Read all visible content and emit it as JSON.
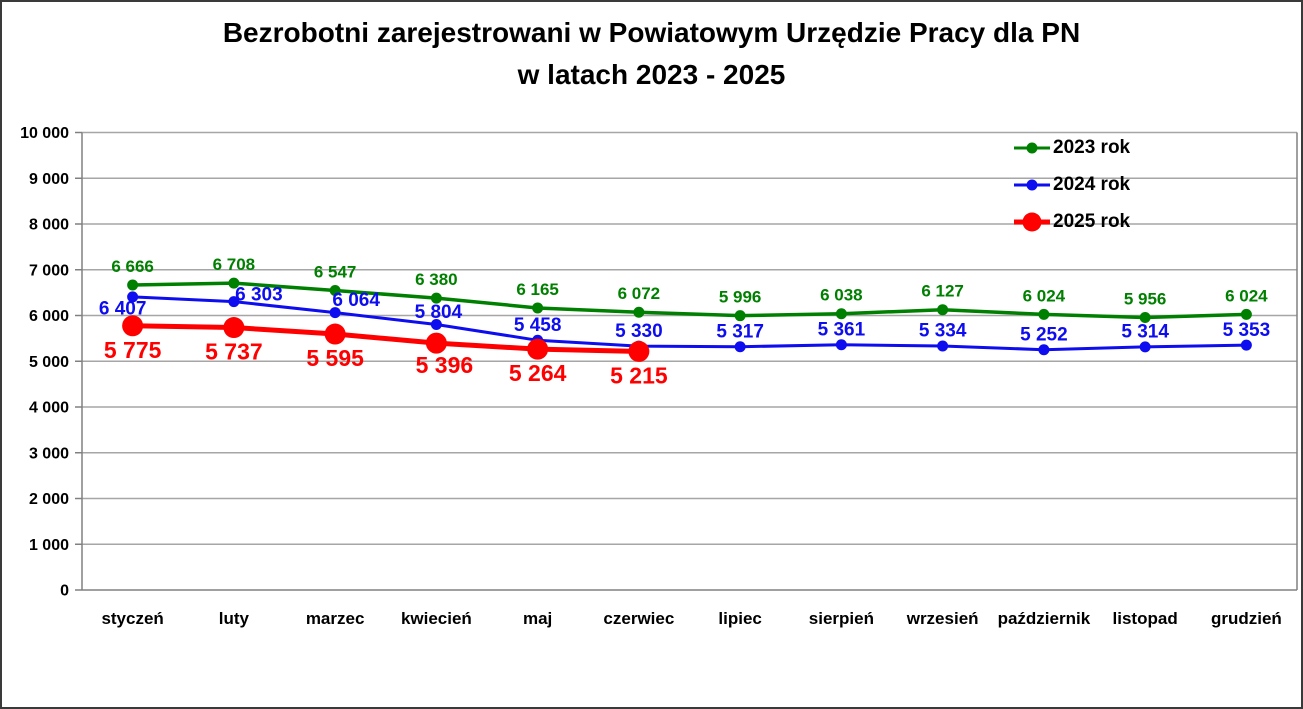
{
  "window": {
    "background": "#FFFFFF",
    "border_color": "#3A3A3A"
  },
  "chart_data": {
    "type": "line",
    "title_line1": "Bezrobotni zarejestrowani w Powiatowym Urzędzie Pracy dla PN",
    "title_line2": "w latach 2023 - 2025",
    "categories": [
      "styczeń",
      "luty",
      "marzec",
      "kwiecień",
      "maj",
      "czerwiec",
      "lipiec",
      "sierpień",
      "wrzesień",
      "październik",
      "listopad",
      "grudzień"
    ],
    "series": [
      {
        "name": "2023 rok",
        "color": "#008000",
        "values": [
          6666,
          6708,
          6547,
          6380,
          6165,
          6072,
          5996,
          6038,
          6127,
          6024,
          5956,
          6024
        ]
      },
      {
        "name": "2024 rok",
        "color": "#0D0DF0",
        "values": [
          6407,
          6303,
          6064,
          5804,
          5458,
          5330,
          5317,
          5361,
          5334,
          5252,
          5314,
          5353
        ]
      },
      {
        "name": "2025 rok",
        "color": "#FF0000",
        "values": [
          5775,
          5737,
          5595,
          5396,
          5264,
          5215
        ]
      }
    ],
    "ylim": [
      0,
      10000
    ],
    "ytick_step": 1000,
    "yticks": [
      "0",
      "1 000",
      "2 000",
      "3 000",
      "4 000",
      "5 000",
      "6 000",
      "7 000",
      "8 000",
      "9 000",
      "10 000"
    ],
    "grid": true,
    "data_labels": true,
    "legend_position": "top-right",
    "gridline_color": "#A6A6A6",
    "axis_color": "#808080",
    "text_color": "#000000",
    "number_format": "space-separated thousands"
  }
}
